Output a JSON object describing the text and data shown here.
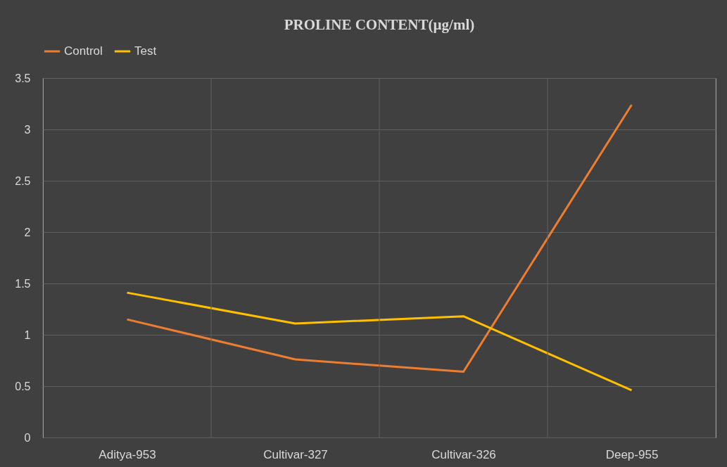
{
  "chart_data": {
    "type": "line",
    "title": "PROLINE CONTENT(µg/ml)",
    "categories": [
      "Aditya-953",
      "Cultivar-327",
      "Cultivar-326",
      "Deep-955"
    ],
    "series": [
      {
        "name": "Control",
        "color": "#ed7d31",
        "values": [
          1.15,
          0.76,
          0.64,
          3.24
        ]
      },
      {
        "name": "Test",
        "color": "#ffc000",
        "values": [
          1.41,
          1.11,
          1.18,
          0.46
        ]
      }
    ],
    "ylim": [
      0,
      3.5
    ],
    "yticks": [
      0,
      0.5,
      1,
      1.5,
      2,
      2.5,
      3,
      3.5
    ],
    "grid": true,
    "legend": "top",
    "marker": "none",
    "line_style": "solid"
  }
}
